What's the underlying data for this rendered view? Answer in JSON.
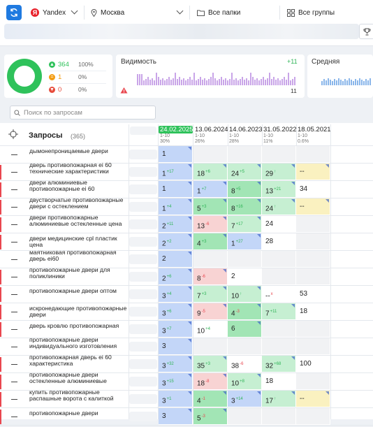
{
  "toolbar": {
    "search_engine": "Yandex",
    "region": "Москва",
    "folders": "Все папки",
    "groups": "Все группы"
  },
  "stats": {
    "rows": [
      {
        "count": "364",
        "pct": "100%",
        "color": "#2fc25b",
        "icon": "arrow-up-icon"
      },
      {
        "count": "1",
        "pct": "0%",
        "color": "#f39c12",
        "icon": "equals-icon"
      },
      {
        "count": "0",
        "pct": "0%",
        "color": "#e74c3c",
        "icon": "arrow-down-icon"
      }
    ],
    "visibility_label": "Видимость",
    "visibility_delta": "+11",
    "visibility_value": "11",
    "average_label": "Средняя"
  },
  "search": {
    "placeholder": "Поиск по запросам"
  },
  "table": {
    "header_label": "Запросы",
    "header_count": "(365)",
    "columns": [
      {
        "date": "24.02.2025",
        "range": "1-10",
        "pct": "30%",
        "active": true
      },
      {
        "date": "13.06.2024",
        "range": "1-10",
        "pct": "26%"
      },
      {
        "date": "14.06.2023",
        "range": "1-10",
        "pct": "28%"
      },
      {
        "date": "31.05.2022",
        "range": "1-10",
        "pct": "11%"
      },
      {
        "date": "18.05.2021",
        "range": "1-10",
        "pct": "0.6%"
      }
    ],
    "rows": [
      {
        "query": "дымонепроницаемые двери",
        "red": false,
        "cells": [
          {
            "v": "1",
            "c": "blue"
          },
          {
            "v": "",
            "c": "gray"
          },
          {
            "v": "",
            "c": "gray"
          },
          {
            "v": "",
            "c": "gray"
          },
          {
            "v": "",
            "c": "gray"
          }
        ]
      },
      {
        "query": "дверь противопожарная ei 60 технические характеристики",
        "red": true,
        "cells": [
          {
            "v": "1",
            "d": "+17",
            "c": "blue"
          },
          {
            "v": "18",
            "d": "+6",
            "c": "green"
          },
          {
            "v": "24",
            "d": "+5",
            "c": "green"
          },
          {
            "v": "29",
            "d": "↑",
            "c": "green"
          },
          {
            "v": "--",
            "c": "yellow"
          }
        ]
      },
      {
        "query": "двери алюминиевые противопожарные ei 60",
        "red": true,
        "cells": [
          {
            "v": "1",
            "c": "blue"
          },
          {
            "v": "1",
            "d": "+7",
            "c": "blue"
          },
          {
            "v": "8",
            "d": "+5",
            "c": "dgreen"
          },
          {
            "v": "13",
            "d": "+21",
            "c": "green"
          },
          {
            "v": "34",
            "c": "white"
          }
        ]
      },
      {
        "query": "двустворчатые противопожарные двери с остеклением",
        "red": true,
        "cells": [
          {
            "v": "1",
            "d": "+4",
            "c": "blue"
          },
          {
            "v": "5",
            "d": "+3",
            "c": "dgreen"
          },
          {
            "v": "8",
            "d": "+16",
            "c": "dgreen"
          },
          {
            "v": "24",
            "d": "↑",
            "c": "green"
          },
          {
            "v": "--",
            "c": "yellow"
          }
        ]
      },
      {
        "query": "двери противопожарные алюминиевые остекленные цена",
        "red": true,
        "cells": [
          {
            "v": "2",
            "d": "+11",
            "c": "blue"
          },
          {
            "v": "13",
            "d": "-6",
            "c": "pink"
          },
          {
            "v": "7",
            "d": "+17",
            "c": "green"
          },
          {
            "v": "24",
            "c": "white"
          },
          {
            "v": "",
            "c": "gray"
          }
        ]
      },
      {
        "query": "двери медицинские cpl пластик цена",
        "red": true,
        "cells": [
          {
            "v": "2",
            "d": "+2",
            "c": "blue"
          },
          {
            "v": "4",
            "d": "+3",
            "c": "dgreen"
          },
          {
            "v": "1",
            "d": "+27",
            "c": "blue"
          },
          {
            "v": "28",
            "c": "white"
          },
          {
            "v": "",
            "c": "gray"
          }
        ]
      },
      {
        "query": "маятниковая противопожарная дверь ei60",
        "red": false,
        "cells": [
          {
            "v": "2",
            "c": "blue"
          },
          {
            "v": "",
            "c": "gray"
          },
          {
            "v": "",
            "c": "gray"
          },
          {
            "v": "",
            "c": "gray"
          },
          {
            "v": "",
            "c": "gray"
          }
        ]
      },
      {
        "query": "противопожарные двери для поликлиники",
        "red": true,
        "cells": [
          {
            "v": "2",
            "d": "+6",
            "c": "blue"
          },
          {
            "v": "8",
            "d": "-6",
            "c": "pink"
          },
          {
            "v": "2",
            "c": "white"
          },
          {
            "v": "",
            "c": "gray"
          },
          {
            "v": "",
            "c": "gray"
          }
        ]
      },
      {
        "query": "противопожарные двери оптом",
        "red": true,
        "cells": [
          {
            "v": "3",
            "d": "+4",
            "c": "blue"
          },
          {
            "v": "7",
            "d": "+3",
            "c": "green"
          },
          {
            "v": "10",
            "d": "↑",
            "c": "green"
          },
          {
            "v": "--",
            "d": "x",
            "c": "white"
          },
          {
            "v": "53",
            "c": "white"
          }
        ]
      },
      {
        "query": "искронедающие противопожарные двери",
        "red": true,
        "cells": [
          {
            "v": "3",
            "d": "+6",
            "c": "blue"
          },
          {
            "v": "9",
            "d": "-5",
            "c": "pink"
          },
          {
            "v": "4",
            "d": "-3",
            "c": "dgreen"
          },
          {
            "v": "7",
            "d": "+11",
            "c": "green"
          },
          {
            "v": "18",
            "c": "white"
          }
        ]
      },
      {
        "query": "дверь кровлю противопожарная",
        "red": true,
        "cells": [
          {
            "v": "3",
            "d": "+7",
            "c": "blue"
          },
          {
            "v": "10",
            "d": "+4",
            "c": "white"
          },
          {
            "v": "6",
            "c": "dgreen"
          },
          {
            "v": "",
            "c": "gray"
          },
          {
            "v": "",
            "c": "gray"
          }
        ]
      },
      {
        "query": "противопожарные двери индивидуального изготовления",
        "red": false,
        "cells": [
          {
            "v": "3",
            "c": "blue"
          },
          {
            "v": "",
            "c": "gray"
          },
          {
            "v": "",
            "c": "gray"
          },
          {
            "v": "",
            "c": "gray"
          },
          {
            "v": "",
            "c": "gray"
          }
        ]
      },
      {
        "query": "противопожарная дверь ei 60 характеристика",
        "red": true,
        "cells": [
          {
            "v": "3",
            "d": "+32",
            "c": "blue"
          },
          {
            "v": "35",
            "d": "+3",
            "c": "green"
          },
          {
            "v": "38",
            "d": "-6",
            "c": "white"
          },
          {
            "v": "32",
            "d": "+68",
            "c": "green"
          },
          {
            "v": "100",
            "c": "white"
          }
        ]
      },
      {
        "query": "противопожарные двери остекленные алюминиевые",
        "red": true,
        "cells": [
          {
            "v": "3",
            "d": "+15",
            "c": "blue"
          },
          {
            "v": "18",
            "d": "-8",
            "c": "pink"
          },
          {
            "v": "10",
            "d": "+8",
            "c": "green"
          },
          {
            "v": "18",
            "c": "white"
          },
          {
            "v": "",
            "c": "gray"
          }
        ]
      },
      {
        "query": "купить противопожарные распашные ворота с калиткой",
        "red": true,
        "cells": [
          {
            "v": "3",
            "d": "+1",
            "c": "blue"
          },
          {
            "v": "4",
            "d": "-1",
            "c": "dgreen"
          },
          {
            "v": "3",
            "d": "+14",
            "c": "blue"
          },
          {
            "v": "17",
            "d": "↑",
            "c": "green"
          },
          {
            "v": "--",
            "c": "yellow"
          }
        ]
      },
      {
        "query": "противопожарные двери",
        "red": true,
        "cells": [
          {
            "v": "3",
            "c": "blue"
          },
          {
            "v": "5",
            "d": "-3",
            "c": "dgreen"
          },
          {
            "v": "",
            "c": "gray"
          },
          {
            "v": "",
            "c": "gray"
          },
          {
            "v": "",
            "c": "gray"
          }
        ]
      }
    ]
  }
}
